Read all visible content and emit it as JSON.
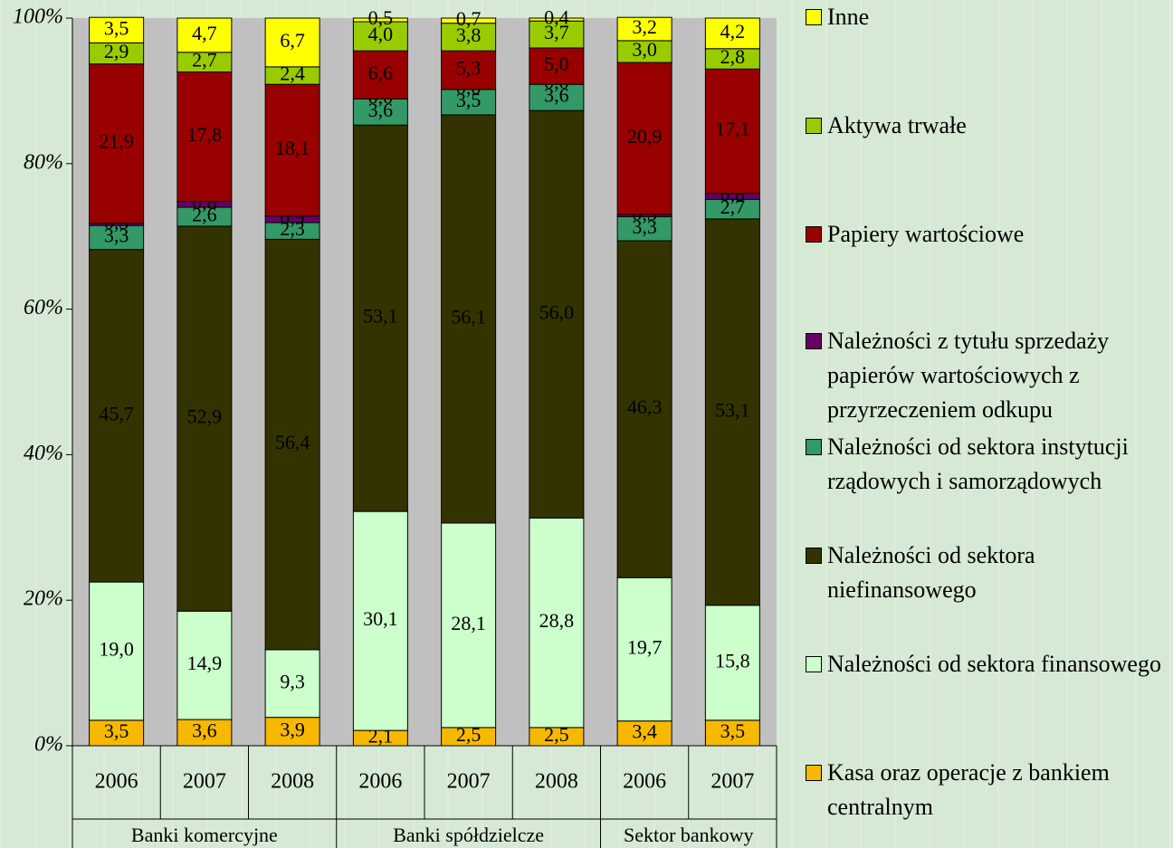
{
  "chart_data": {
    "type": "stacked_bar_100",
    "category_groups": [
      {
        "name": "Banki komercyjne",
        "categories": [
          "2006",
          "2007",
          "2008"
        ]
      },
      {
        "name": "Banki spółdzielcze",
        "categories": [
          "2006",
          "2007",
          "2008"
        ]
      },
      {
        "name": "Sektor bankowy",
        "categories": [
          "2006",
          "2007"
        ]
      }
    ],
    "ylim": [
      0,
      100
    ],
    "yticks": [
      {
        "value": 0,
        "label": "0%"
      },
      {
        "value": 20,
        "label": "20%"
      },
      {
        "value": 40,
        "label": "40%"
      },
      {
        "value": 60,
        "label": "60%"
      },
      {
        "value": 80,
        "label": "80%"
      },
      {
        "value": 100,
        "label": "100%"
      }
    ],
    "series": [
      {
        "name": "Kasa oraz operacje z bankiem centralnym",
        "color": "#F7B900",
        "values": [
          3.5,
          3.6,
          3.9,
          2.1,
          2.5,
          2.5,
          3.4,
          3.5
        ],
        "value_labels": [
          "3,5",
          "3,6",
          "3,9",
          "2,1",
          "2,5",
          "2,5",
          "3,4",
          "3,5"
        ]
      },
      {
        "name": "Należności od sektora finansowego",
        "color": "#CCFFCC",
        "values": [
          19.0,
          14.9,
          9.3,
          30.1,
          28.1,
          28.8,
          19.7,
          15.8
        ],
        "value_labels": [
          "19,0",
          "14,9",
          "9,3",
          "30,1",
          "28,1",
          "28,8",
          "19,7",
          "15,8"
        ]
      },
      {
        "name": "Należności od sektora niefinansowego",
        "color": "#333300",
        "values": [
          45.7,
          52.9,
          56.4,
          53.1,
          56.1,
          56.0,
          46.3,
          53.1
        ],
        "value_labels": [
          "45,7",
          "52,9",
          "56,4",
          "53,1",
          "56,1",
          "56,0",
          "46,3",
          "53,1"
        ]
      },
      {
        "name": "Należności od sektora instytucji rządowych i samorządowych",
        "color": "#339966",
        "values": [
          3.3,
          2.6,
          2.3,
          3.6,
          3.5,
          3.6,
          3.3,
          2.7
        ],
        "value_labels": [
          "3,3",
          "2,6",
          "2,3",
          "3,6",
          "3,5",
          "3,6",
          "3,3",
          "2,7"
        ]
      },
      {
        "name": "Należności z tytułu sprzedaży papierów wartościowych z przyrzeczeniem odkupu",
        "color": "#660066",
        "values": [
          0.3,
          0.8,
          0.9,
          0.0,
          0.0,
          0.0,
          0.3,
          0.8
        ],
        "value_labels": [
          "0,3",
          "0,8",
          "0,9",
          "0,0",
          "0,0",
          "0,0",
          "0,3",
          "0,8"
        ]
      },
      {
        "name": "Papiery wartościowe",
        "color": "#990000",
        "values": [
          21.9,
          17.8,
          18.1,
          6.6,
          5.3,
          5.0,
          20.9,
          17.1
        ],
        "value_labels": [
          "21,9",
          "17,8",
          "18,1",
          "6,6",
          "5,3",
          "5,0",
          "20,9",
          "17,1"
        ]
      },
      {
        "name": "Aktywa trwałe",
        "color": "#99CC00",
        "values": [
          2.9,
          2.7,
          2.4,
          4.0,
          3.8,
          3.7,
          3.0,
          2.8
        ],
        "value_labels": [
          "2,9",
          "2,7",
          "2,4",
          "4,0",
          "3,8",
          "3,7",
          "3,0",
          "2,8"
        ]
      },
      {
        "name": "Inne",
        "color": "#FFFF00",
        "values": [
          3.5,
          4.7,
          6.7,
          0.5,
          0.7,
          0.4,
          3.2,
          4.2
        ],
        "value_labels": [
          "3,5",
          "4,7",
          "6,7",
          "0,5",
          "0,7",
          "0,4",
          "3,2",
          "4,2"
        ]
      }
    ]
  }
}
